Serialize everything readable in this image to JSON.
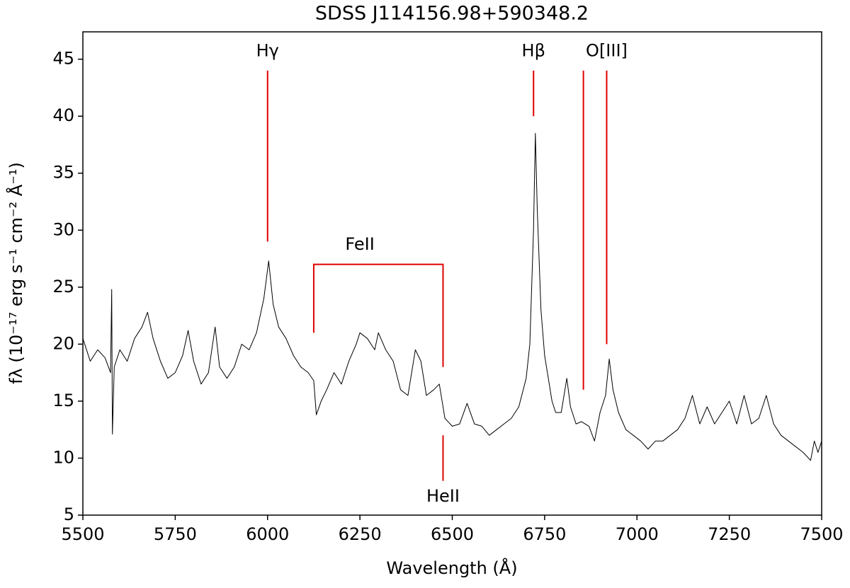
{
  "chart_data": {
    "type": "line",
    "title": "SDSS J114156.98+590348.2",
    "x_label": "Wavelength (Å)",
    "y_label": "fλ (10⁻¹⁷ erg s⁻¹ cm⁻² Å⁻¹)",
    "color": "#000000",
    "x": [
      5500,
      5520,
      5540,
      5560,
      5575,
      5578,
      5580,
      5585,
      5600,
      5620,
      5640,
      5660,
      5675,
      5690,
      5710,
      5730,
      5750,
      5770,
      5785,
      5800,
      5820,
      5840,
      5858,
      5870,
      5890,
      5910,
      5930,
      5950,
      5970,
      5990,
      6003,
      6015,
      6030,
      6050,
      6070,
      6090,
      6110,
      6125,
      6132,
      6145,
      6160,
      6180,
      6200,
      6220,
      6240,
      6250,
      6270,
      6290,
      6300,
      6320,
      6340,
      6360,
      6380,
      6400,
      6415,
      6430,
      6450,
      6465,
      6480,
      6500,
      6520,
      6540,
      6560,
      6580,
      6600,
      6620,
      6640,
      6660,
      6680,
      6700,
      6710,
      6720,
      6725,
      6730,
      6740,
      6750,
      6760,
      6770,
      6780,
      6795,
      6810,
      6820,
      6835,
      6850,
      6870,
      6885,
      6900,
      6915,
      6925,
      6935,
      6950,
      6970,
      6990,
      7010,
      7030,
      7050,
      7070,
      7090,
      7110,
      7130,
      7150,
      7170,
      7190,
      7210,
      7230,
      7250,
      7270,
      7290,
      7310,
      7330,
      7350,
      7370,
      7390,
      7410,
      7430,
      7450,
      7470,
      7480,
      7490,
      7500
    ],
    "values": [
      20.5,
      18.5,
      19.5,
      18.8,
      17.5,
      24.8,
      12.1,
      18,
      19.5,
      18.5,
      20.5,
      21.5,
      22.8,
      20.5,
      18.5,
      17,
      17.5,
      19,
      21.2,
      18.5,
      16.5,
      17.5,
      21.5,
      18,
      17,
      18,
      20,
      19.5,
      21,
      24,
      27.3,
      23.5,
      21.5,
      20.5,
      19,
      18,
      17.5,
      16.8,
      13.8,
      15,
      16,
      17.5,
      16.5,
      18.5,
      20,
      21,
      20.5,
      19.5,
      21,
      19.5,
      18.5,
      16,
      15.5,
      19.5,
      18.5,
      15.5,
      16,
      16.5,
      13.5,
      12.8,
      13,
      14.8,
      13,
      12.8,
      12,
      12.5,
      13,
      13.5,
      14.5,
      17,
      20,
      30,
      38.5,
      32,
      23,
      19,
      17,
      15,
      14,
      14,
      17,
      14.5,
      13,
      13.2,
      12.8,
      11.5,
      14,
      15.5,
      18.7,
      16,
      14,
      12.5,
      12,
      11.5,
      10.8,
      11.5,
      11.5,
      12,
      12.5,
      13.5,
      15.5,
      13,
      14.5,
      13,
      14,
      15,
      13,
      15.5,
      13,
      13.5,
      15.5,
      13,
      12,
      11.5,
      11,
      10.5,
      9.8,
      11.5,
      10.5,
      11.5
    ],
    "xlim": [
      5500,
      7500
    ],
    "xticks": [
      5500,
      5750,
      6000,
      6250,
      6500,
      6750,
      7000,
      7250,
      7500
    ],
    "ylim": [
      5,
      47.4
    ],
    "yticks": [
      5,
      10,
      15,
      20,
      25,
      30,
      35,
      40,
      45
    ],
    "annotation_color": "#e00000",
    "annotation_lines": [
      {
        "x": [
          6000,
          6000
        ],
        "y": [
          29,
          44
        ]
      },
      {
        "x": [
          6720,
          6720
        ],
        "y": [
          40,
          44
        ]
      },
      {
        "x": [
          6855,
          6855
        ],
        "y": [
          16,
          44
        ]
      },
      {
        "x": [
          6918,
          6918
        ],
        "y": [
          20,
          44
        ]
      },
      {
        "x": [
          6125,
          6125,
          6475,
          6475
        ],
        "y": [
          21,
          27,
          27,
          18
        ]
      },
      {
        "x": [
          6475,
          6475
        ],
        "y": [
          8,
          12
        ]
      }
    ],
    "annotation_labels": [
      {
        "text": "Hγ",
        "x": 6000,
        "y": 45.7
      },
      {
        "text": "Hβ",
        "x": 6720,
        "y": 45.7
      },
      {
        "text": "O[III]",
        "x": 6918,
        "y": 45.7
      },
      {
        "text": "FeII",
        "x": 6250,
        "y": 28.7
      },
      {
        "text": "HeII",
        "x": 6475,
        "y": 6.6
      }
    ]
  }
}
